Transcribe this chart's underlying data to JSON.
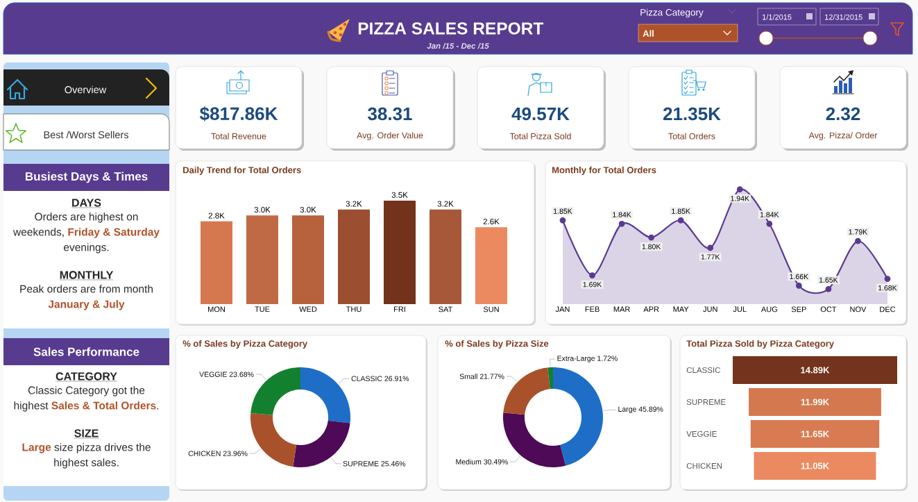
{
  "chart_data": [
    {
      "type": "other",
      "title": "PIZZA SALES REPORT",
      "subtitle": "Jan /15 - Dec /15",
      "annotations": [
        "Pizza Category",
        "All",
        "1/1/2015",
        "12/31/2015"
      ]
    },
    {
      "type": "other",
      "annotations": [
        "Overview",
        "Best /Worst Sellers"
      ]
    },
    {
      "type": "other",
      "annotations": [
        "$817.86K",
        "Total Revenue",
        "38.31",
        "Avg. Order Value",
        "49.57K",
        "Total Pizza Sold",
        "21.35K",
        "Total Orders",
        "2.32",
        "Avg. Pizza/ Order"
      ]
    },
    {
      "type": "other",
      "title": "Busiest Days & Times",
      "annotations": [
        "DAYS",
        "Orders are highest on weekends, **Friday & Saturday** evenings.",
        "MONTHLY",
        "Peak orders are from month **January & July**"
      ]
    },
    {
      "type": "bar",
      "title": "Daily Trend for Total Orders",
      "categories": [
        "MON",
        "TUE",
        "WED",
        "THU",
        "FRI",
        "SAT",
        "SUN"
      ],
      "values": [
        2.8,
        3.0,
        3.0,
        3.2,
        3.5,
        3.2,
        2.6
      ],
      "colors": [
        "#d6784f",
        "#c06a45",
        "#b7613d",
        "#9c4f30",
        "#72321c",
        "#a65839",
        "#eb8a61"
      ],
      "value_labels": [
        "2.8K",
        "3.0K",
        "3.0K",
        "3.2K",
        "3.5K",
        "3.2K",
        "2.6K"
      ],
      "tick_labels": "x"
    },
    {
      "type": "area",
      "title": "Monthly for Total Orders",
      "categories": [
        "JAN",
        "FEB",
        "MAR",
        "APR",
        "MAY",
        "JUN",
        "JUL",
        "AUG",
        "SEP",
        "OCT",
        "NOV",
        "DEC"
      ],
      "values": [
        1.85,
        1.69,
        1.84,
        1.8,
        1.85,
        1.77,
        1.94,
        1.84,
        1.66,
        1.65,
        1.79,
        1.68
      ],
      "color": "#5b3a91",
      "marker": "circle",
      "value_labels": [
        "1.85K",
        "1.69K",
        "1.84K",
        "1.80K",
        "1.85K",
        "1.77K",
        "1.94K",
        "1.84K",
        "1.66K",
        "1.65K",
        "1.79K",
        "1.68K"
      ],
      "tick_labels": "x"
    },
    {
      "type": "other",
      "title": "Sales Performance",
      "annotations": [
        "CATEGORY",
        "Classic Category got the highest **Sales & Total Orders**.",
        "SIZE",
        "**Large** size pizza drives the highest sales."
      ]
    },
    {
      "type": "donut",
      "title": "% of Sales by Pizza Category",
      "categories": [
        "CLASSIC",
        "SUPREME",
        "CHICKEN",
        "VEGGIE"
      ],
      "values": [
        26.91,
        25.46,
        23.96,
        23.68
      ],
      "colors": [
        "#1e6ec8",
        "#4e0a56",
        "#a9512a",
        "#13802f"
      ],
      "value_labels": [
        "26.91%",
        "25.46%",
        "23.96%",
        "23.68%"
      ]
    },
    {
      "type": "donut",
      "title": "% of Sales by Pizza Size",
      "categories": [
        "Large",
        "Medium",
        "Small",
        "Extra-Large"
      ],
      "values": [
        45.89,
        30.49,
        21.77,
        1.72
      ],
      "colors": [
        "#1e6ec8",
        "#4e0a56",
        "#a9512a",
        "#13802f"
      ],
      "value_labels": [
        "45.89%",
        "30.49%",
        "21.77%",
        "1.72%"
      ]
    },
    {
      "type": "other",
      "title": "Total Pizza Sold by Pizza Category",
      "categories": [
        "CLASSIC",
        "SUPREME",
        "VEGGIE",
        "CHICKEN"
      ],
      "values": [
        14.89,
        11.99,
        11.65,
        11.05
      ],
      "colors": [
        "#73331d",
        "#d4784f",
        "#d97b52",
        "#eb8a60"
      ],
      "value_labels": [
        "14.89K",
        "11.99K",
        "11.65K",
        "11.05K"
      ]
    }
  ]
}
